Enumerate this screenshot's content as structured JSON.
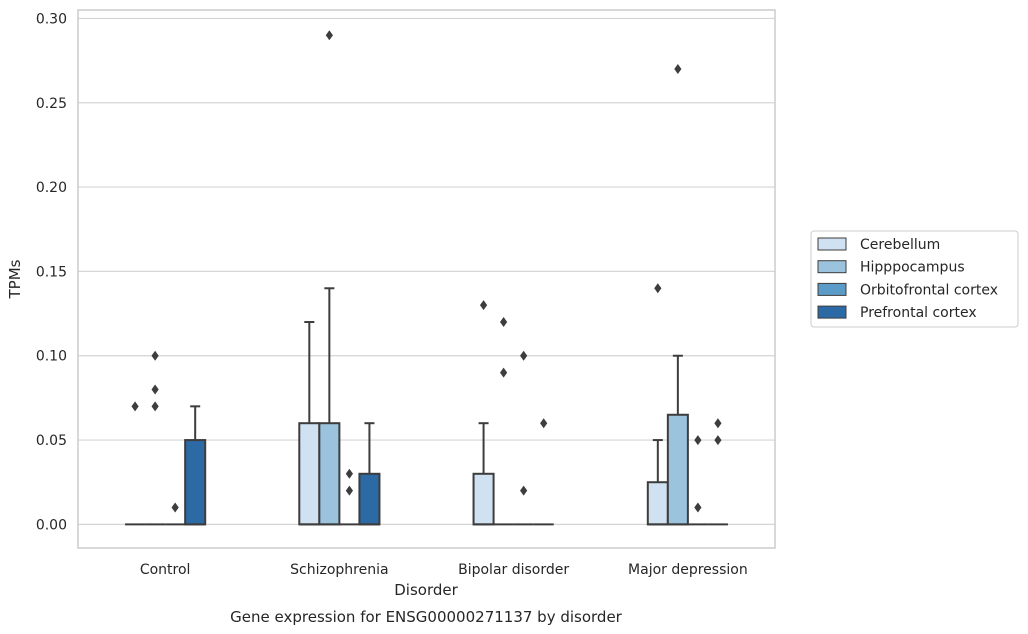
{
  "chart_data": {
    "type": "box",
    "caption": "Gene expression for ENSG00000271137 by disorder",
    "xlabel": "Disorder",
    "ylabel": "TPMs",
    "ylim": [
      -0.014,
      0.305
    ],
    "yticks": [
      0.0,
      0.05,
      0.1,
      0.15,
      0.2,
      0.25,
      0.3
    ],
    "ytick_labels": [
      "0.00",
      "0.05",
      "0.10",
      "0.15",
      "0.20",
      "0.25",
      "0.30"
    ],
    "grid": "horizontal",
    "legend_position": "right",
    "categories": [
      "Control",
      "Schizophrenia",
      "Bipolar disorder",
      "Major depression"
    ],
    "series": [
      {
        "name": "Cerebellum",
        "color": "#d0e1f1",
        "boxes": [
          {
            "q1": 0,
            "median": 0,
            "q3": 0,
            "whisker_low": 0,
            "whisker_high": 0,
            "outliers": [
              0.07
            ]
          },
          {
            "q1": 0,
            "median": 0,
            "q3": 0.06,
            "whisker_low": 0,
            "whisker_high": 0.12,
            "outliers": []
          },
          {
            "q1": 0,
            "median": 0,
            "q3": 0.03,
            "whisker_low": 0,
            "whisker_high": 0.06,
            "outliers": [
              0.13
            ]
          },
          {
            "q1": 0,
            "median": 0,
            "q3": 0.025,
            "whisker_low": 0,
            "whisker_high": 0.05,
            "outliers": [
              0.14
            ]
          }
        ]
      },
      {
        "name": "Hipppocampus",
        "color": "#9bc3de",
        "boxes": [
          {
            "q1": 0,
            "median": 0,
            "q3": 0,
            "whisker_low": 0,
            "whisker_high": 0,
            "outliers": [
              0.07,
              0.08,
              0.1
            ]
          },
          {
            "q1": 0,
            "median": 0,
            "q3": 0.06,
            "whisker_low": 0,
            "whisker_high": 0.14,
            "outliers": [
              0.29
            ]
          },
          {
            "q1": 0,
            "median": 0,
            "q3": 0,
            "whisker_low": 0,
            "whisker_high": 0,
            "outliers": [
              0.09,
              0.12
            ]
          },
          {
            "q1": 0,
            "median": 0,
            "q3": 0.065,
            "whisker_low": 0,
            "whisker_high": 0.1,
            "outliers": [
              0.27
            ]
          }
        ]
      },
      {
        "name": "Orbitofrontal cortex",
        "color": "#5b9bc8",
        "boxes": [
          {
            "q1": 0,
            "median": 0,
            "q3": 0,
            "whisker_low": 0,
            "whisker_high": 0,
            "outliers": [
              0.01
            ]
          },
          {
            "q1": 0,
            "median": 0,
            "q3": 0,
            "whisker_low": 0,
            "whisker_high": 0,
            "outliers": [
              0.02,
              0.03
            ]
          },
          {
            "q1": 0,
            "median": 0,
            "q3": 0,
            "whisker_low": 0,
            "whisker_high": 0,
            "outliers": [
              0.02,
              0.1
            ]
          },
          {
            "q1": 0,
            "median": 0,
            "q3": 0,
            "whisker_low": 0,
            "whisker_high": 0,
            "outliers": [
              0.01,
              0.05
            ]
          }
        ]
      },
      {
        "name": "Prefrontal cortex",
        "color": "#2c6aa5",
        "boxes": [
          {
            "q1": 0,
            "median": 0,
            "q3": 0.05,
            "whisker_low": 0,
            "whisker_high": 0.07,
            "outliers": []
          },
          {
            "q1": 0,
            "median": 0,
            "q3": 0.03,
            "whisker_low": 0,
            "whisker_high": 0.06,
            "outliers": []
          },
          {
            "q1": 0,
            "median": 0,
            "q3": 0,
            "whisker_low": 0,
            "whisker_high": 0,
            "outliers": [
              0.06
            ]
          },
          {
            "q1": 0,
            "median": 0,
            "q3": 0,
            "whisker_low": 0,
            "whisker_high": 0,
            "outliers": [
              0.05,
              0.06
            ]
          }
        ]
      }
    ]
  }
}
